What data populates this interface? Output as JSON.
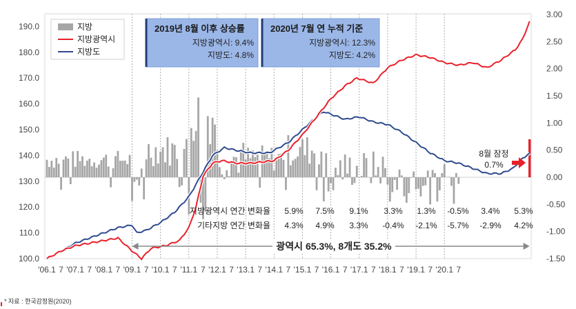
{
  "chart_data": {
    "type": "bar+line",
    "title": "",
    "left_axis": {
      "ticks": [
        100.0,
        110.0,
        120.0,
        130.0,
        140.0,
        150.0,
        160.0,
        170.0,
        180.0,
        190.0
      ],
      "range": [
        100,
        195
      ]
    },
    "right_axis": {
      "ticks": [
        "3.00",
        "2.50",
        "2.00",
        "1.50",
        "1.00",
        "0.50",
        "0.00",
        "-0.50",
        "-1.00",
        "-1.50"
      ],
      "range": [
        -1.5,
        3.0
      ]
    },
    "x_ticks": [
      "'06.1",
      "7",
      "'07.1",
      "7",
      "'08.1",
      "7",
      "'09.1",
      "7",
      "'10.1",
      "7",
      "'11.1",
      "7",
      "'12.1",
      "7",
      "'13.1",
      "7",
      "'14.1",
      "7",
      "'15.1",
      "7",
      "'16.1",
      "7",
      "'17.1",
      "7",
      "'18.1",
      "7",
      "'19.1",
      "7",
      "'20.1",
      "7"
    ],
    "start_month": "2006-01",
    "legend": [
      {
        "name": "지방",
        "kind": "bar",
        "color": "#a6a6a6"
      },
      {
        "name": "지방광역시",
        "kind": "line",
        "color": "#e8202a"
      },
      {
        "name": "지방도",
        "kind": "line",
        "color": "#2e4a8e"
      }
    ],
    "series": [
      {
        "name": "지방광역시",
        "axis": "left",
        "anchors": [
          [
            0,
            100.0
          ],
          [
            6,
            103
          ],
          [
            12,
            105
          ],
          [
            18,
            106
          ],
          [
            24,
            107
          ],
          [
            30,
            108
          ],
          [
            36,
            103
          ],
          [
            40,
            100
          ],
          [
            44,
            104
          ],
          [
            50,
            105
          ],
          [
            56,
            107
          ],
          [
            60,
            112
          ],
          [
            63,
            120
          ],
          [
            66,
            132
          ],
          [
            70,
            137
          ],
          [
            74,
            138
          ],
          [
            80,
            137
          ],
          [
            86,
            137
          ],
          [
            96,
            138
          ],
          [
            102,
            142
          ],
          [
            108,
            148
          ],
          [
            114,
            155
          ],
          [
            120,
            162
          ],
          [
            126,
            167
          ],
          [
            131,
            170
          ],
          [
            138,
            168
          ],
          [
            144,
            174
          ],
          [
            150,
            177
          ],
          [
            156,
            179
          ],
          [
            162,
            178
          ],
          [
            168,
            176
          ],
          [
            174,
            175
          ],
          [
            180,
            176
          ],
          [
            186,
            174
          ],
          [
            192,
            177
          ],
          [
            198,
            181
          ],
          [
            201,
            185
          ],
          [
            204,
            192
          ]
        ]
      },
      {
        "name": "지방도",
        "axis": "left",
        "anchors": [
          [
            0,
            100.0
          ],
          [
            6,
            103
          ],
          [
            12,
            106
          ],
          [
            18,
            108
          ],
          [
            24,
            110
          ],
          [
            30,
            112
          ],
          [
            36,
            113
          ],
          [
            38,
            110
          ],
          [
            42,
            111
          ],
          [
            48,
            114
          ],
          [
            54,
            118
          ],
          [
            60,
            124
          ],
          [
            65,
            132
          ],
          [
            70,
            140
          ],
          [
            75,
            143
          ],
          [
            80,
            142
          ],
          [
            86,
            141
          ],
          [
            94,
            141
          ],
          [
            102,
            145
          ],
          [
            108,
            150
          ],
          [
            114,
            155
          ],
          [
            117,
            157
          ],
          [
            120,
            156
          ],
          [
            126,
            154
          ],
          [
            132,
            155
          ],
          [
            138,
            153
          ],
          [
            144,
            152
          ],
          [
            150,
            149
          ],
          [
            156,
            145
          ],
          [
            162,
            141
          ],
          [
            168,
            138
          ],
          [
            174,
            137
          ],
          [
            180,
            135
          ],
          [
            186,
            133
          ],
          [
            192,
            133
          ],
          [
            197,
            135
          ],
          [
            200,
            138
          ],
          [
            204,
            141
          ]
        ]
      },
      {
        "name": "지방",
        "axis": "right",
        "kind": "bar",
        "months": 175,
        "seed": 7
      }
    ],
    "annotations": [
      {
        "title": "2019년 8월 이후 상승률",
        "lines": [
          "지방광역시: 9.4%",
          "지방도: 4.8%"
        ]
      },
      {
        "title": "2020년 7월 연 누적 기준",
        "lines": [
          "지방광역시: 12.3%",
          "지방도: 4.2%"
        ]
      }
    ],
    "latest": {
      "label1": "8월 잠정",
      "label2": "0.7%",
      "value": 0.7
    },
    "table": {
      "row1_label": "지방광역시 연간 변화율",
      "row2_label": "기타지방 연간 변화율",
      "row1": [
        "5.9%",
        "7.5%",
        "9.1%",
        "3.3%",
        "1.3%",
        "-0.5%",
        "3.4%",
        "5.3%"
      ],
      "row2": [
        "4.3%",
        "4.9%",
        "3.3%",
        "-0.4%",
        "-2.1%",
        "-5.7%",
        "-2.9%",
        "4.2%"
      ]
    },
    "range_label": "광역시 65.3%, 8개도 35.2%"
  },
  "source_note": "* 자료 : 한국감정원(2020)"
}
